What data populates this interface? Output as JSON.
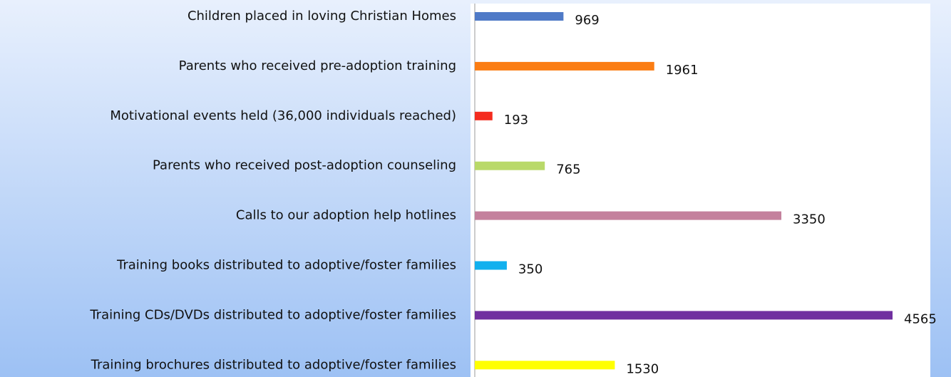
{
  "chart_data": {
    "type": "bar",
    "orientation": "horizontal",
    "categories": [
      "Children placed in loving Christian Homes",
      "Parents who received pre-adoption training",
      "Motivational events held (36,000 individuals reached)",
      "Parents who received post-adoption counseling",
      "Calls to our adoption help hotlines",
      "Training books distributed to adoptive/foster families",
      "Training CDs/DVDs distributed to adoptive/foster families",
      "Training brochures distributed to adoptive/foster families"
    ],
    "values": [
      969,
      1961,
      193,
      765,
      3350,
      350,
      4565,
      1530
    ],
    "colors": [
      "#4f7ac7",
      "#fb7d13",
      "#f42c1f",
      "#b9d969",
      "#c4819d",
      "#11b0ee",
      "#7030a0",
      "#ffff00"
    ]
  }
}
